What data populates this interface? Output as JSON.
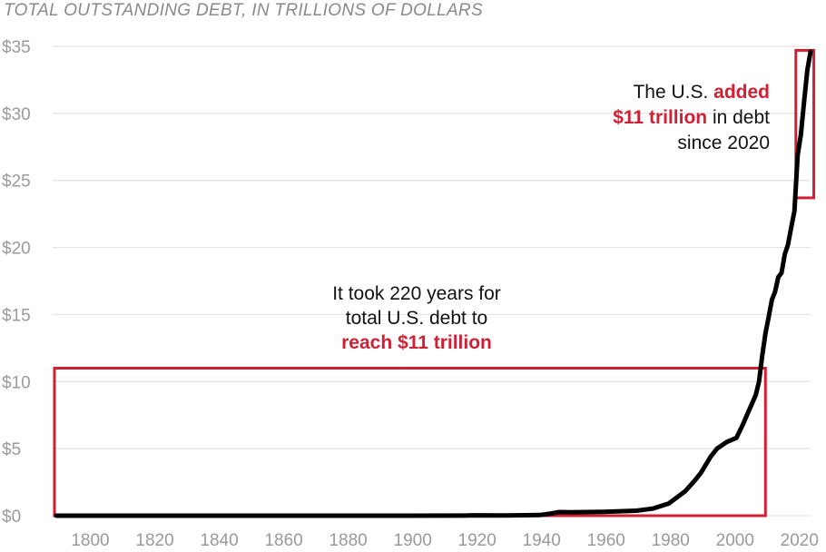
{
  "chart_data": {
    "type": "line",
    "title": "TOTAL OUTSTANDING DEBT, IN TRILLIONS OF DOLLARS",
    "xlabel": "",
    "ylabel": "",
    "xlim": [
      1788,
      2026
    ],
    "ylim": [
      0,
      35
    ],
    "grid": "horizontal",
    "x_ticks": [
      1800,
      1820,
      1840,
      1860,
      1880,
      1900,
      1920,
      1940,
      1960,
      1980,
      2000,
      2020
    ],
    "y_ticks": [
      0,
      5,
      10,
      15,
      20,
      25,
      30,
      35
    ],
    "y_tick_labels": [
      "$0",
      "$5",
      "$10",
      "$15",
      "$20",
      "$25",
      "$30",
      "$35"
    ],
    "line_color": "#000000",
    "highlight_color": "#d21f33",
    "series": [
      {
        "x": [
          1790,
          1860,
          1900,
          1917,
          1919,
          1930,
          1940,
          1943,
          1946,
          1950,
          1960,
          1970,
          1975,
          1980,
          1985,
          1988,
          1990,
          1993,
          1995,
          1998,
          2000,
          2001,
          2003,
          2005,
          2007,
          2008,
          2009,
          2010,
          2011,
          2012,
          2013,
          2014,
          2015,
          2016,
          2017,
          2018,
          2019,
          2020,
          2021,
          2022,
          2023,
          2024
        ],
        "y": [
          0.0,
          0.0,
          0.0,
          0.01,
          0.03,
          0.02,
          0.05,
          0.14,
          0.27,
          0.26,
          0.29,
          0.37,
          0.53,
          0.91,
          1.8,
          2.6,
          3.2,
          4.4,
          5.0,
          5.5,
          5.7,
          5.8,
          6.8,
          7.9,
          9.0,
          10.0,
          11.9,
          13.6,
          14.8,
          16.1,
          16.7,
          17.8,
          18.1,
          19.5,
          20.2,
          21.5,
          22.7,
          26.9,
          28.4,
          30.9,
          33.2,
          34.6
        ]
      }
    ],
    "annotations": {
      "box_early": {
        "x": [
          1790,
          2010
        ],
        "y": [
          0,
          11
        ]
      },
      "box_recent": {
        "x": [
          2020,
          2025
        ],
        "y": [
          23.7,
          34.7
        ]
      },
      "early_text": {
        "line1": "It took 220 years for",
        "line2": "total U.S. debt to",
        "line3_highlight": "reach $11 trillion"
      },
      "recent_text": {
        "line1_plain": "The U.S. ",
        "line1_highlight": "added",
        "line2_highlight": "$11 trillion",
        "line2_plain": " in debt",
        "line3": "since 2020"
      }
    }
  }
}
